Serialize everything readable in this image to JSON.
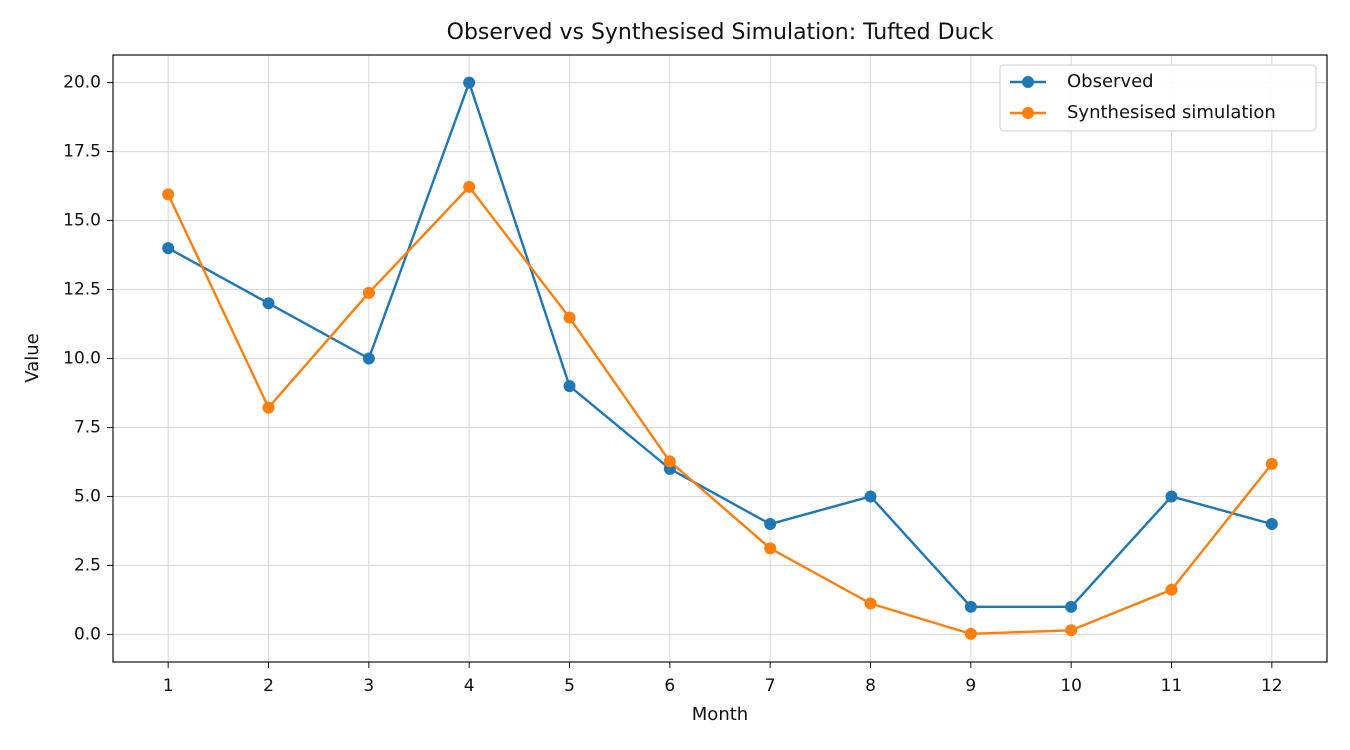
{
  "chart_data": {
    "type": "line",
    "title": "Observed vs Synthesised Simulation: Tufted Duck",
    "xlabel": "Month",
    "ylabel": "Value",
    "x": [
      1,
      2,
      3,
      4,
      5,
      6,
      7,
      8,
      9,
      10,
      11,
      12
    ],
    "x_ticks": [
      1,
      2,
      3,
      4,
      5,
      6,
      7,
      8,
      9,
      10,
      11,
      12
    ],
    "y_ticks": [
      "0.0",
      "2.5",
      "5.0",
      "7.5",
      "10.0",
      "12.5",
      "15.0",
      "17.5",
      "20.0"
    ],
    "xlim": [
      0.45,
      12.55
    ],
    "ylim": [
      -1.0,
      21.0
    ],
    "grid": true,
    "legend_position": "top-right",
    "series": [
      {
        "name": "Observed",
        "color": "#1f77b4",
        "values": [
          14,
          12,
          10,
          20,
          9,
          6,
          4,
          5,
          1,
          1,
          5,
          4
        ]
      },
      {
        "name": "Synthesised simulation",
        "color": "#ff7f0e",
        "values": [
          15.95,
          8.22,
          12.38,
          16.22,
          11.48,
          6.27,
          3.12,
          1.12,
          0.02,
          0.15,
          1.62,
          6.18
        ]
      }
    ]
  }
}
